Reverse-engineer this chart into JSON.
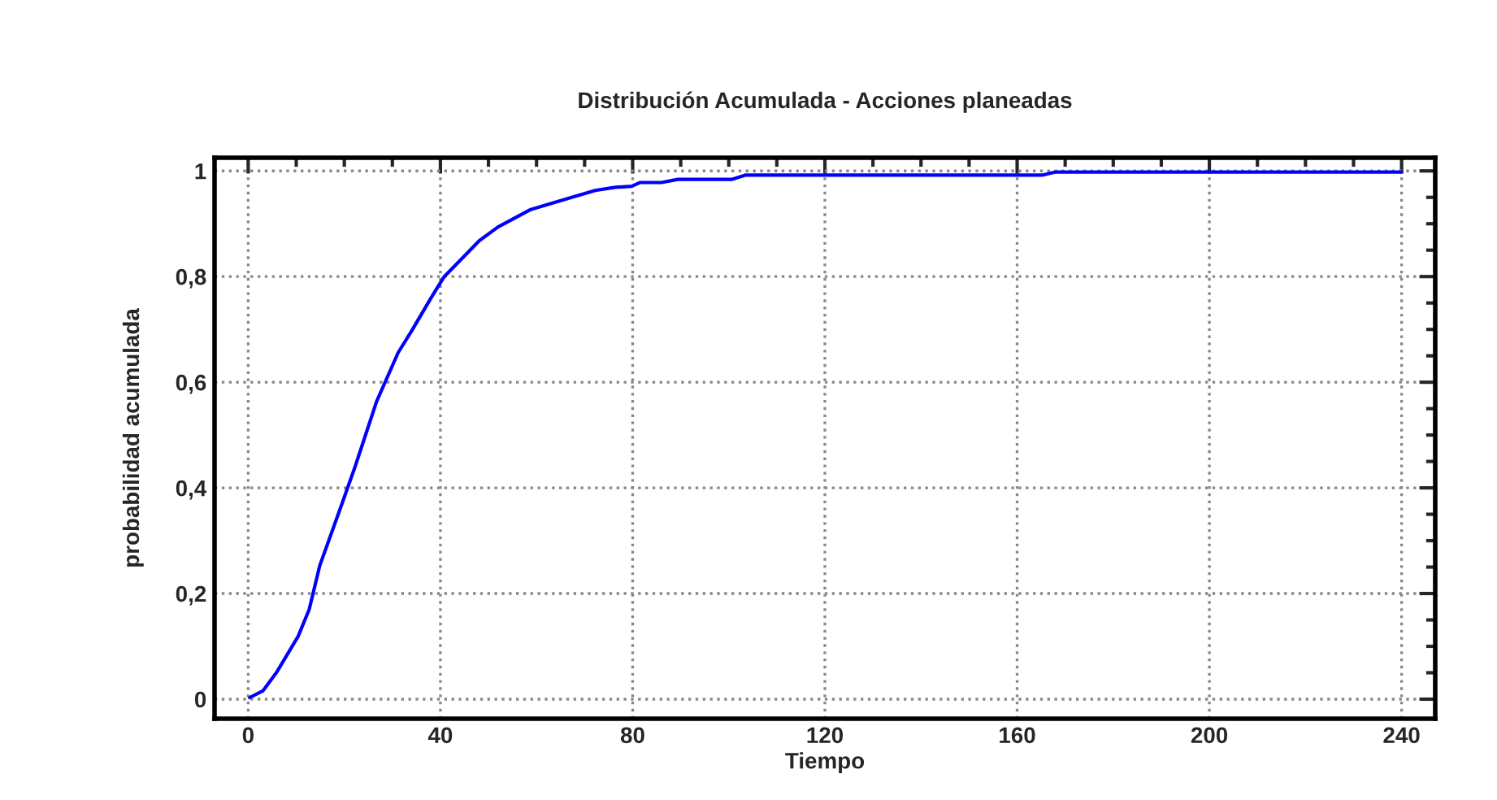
{
  "chart_data": {
    "type": "line",
    "title": "Distribución Acumulada - Acciones planeadas",
    "xlabel": "Tiempo",
    "ylabel": "probabilidad acumulada",
    "xlim": [
      -7,
      247
    ],
    "ylim": [
      -0.037,
      1.025
    ],
    "xticks": [
      0,
      40,
      80,
      120,
      160,
      200,
      240
    ],
    "yticks": [
      0,
      {
        "value": 0.2,
        "label": "0,2"
      },
      {
        "value": 0.4,
        "label": "0,4"
      },
      {
        "value": 0.6,
        "label": "0,6"
      },
      {
        "value": 0.8,
        "label": "0,8"
      },
      1
    ],
    "grid": true,
    "line_style": "solid",
    "marker": "none",
    "series": [
      {
        "color": "#0000ff",
        "x": [
          0.3,
          3.1,
          6,
          10.4,
          12.7,
          14.9,
          19.4,
          22.2,
          26.7,
          31.2,
          34,
          38,
          40.8,
          48.1,
          52,
          58.8,
          66.6,
          72.2,
          76.4,
          79.8,
          81.5,
          86,
          89.4,
          100.6,
          103.4,
          165.2,
          168,
          240
        ],
        "values": [
          0.003,
          0.016,
          0.052,
          0.119,
          0.17,
          0.253,
          0.367,
          0.439,
          0.563,
          0.656,
          0.697,
          0.759,
          0.8,
          0.868,
          0.894,
          0.927,
          0.948,
          0.963,
          0.969,
          0.971,
          0.978,
          0.978,
          0.984,
          0.984,
          0.992,
          0.992,
          0.998,
          0.998
        ]
      }
    ]
  }
}
